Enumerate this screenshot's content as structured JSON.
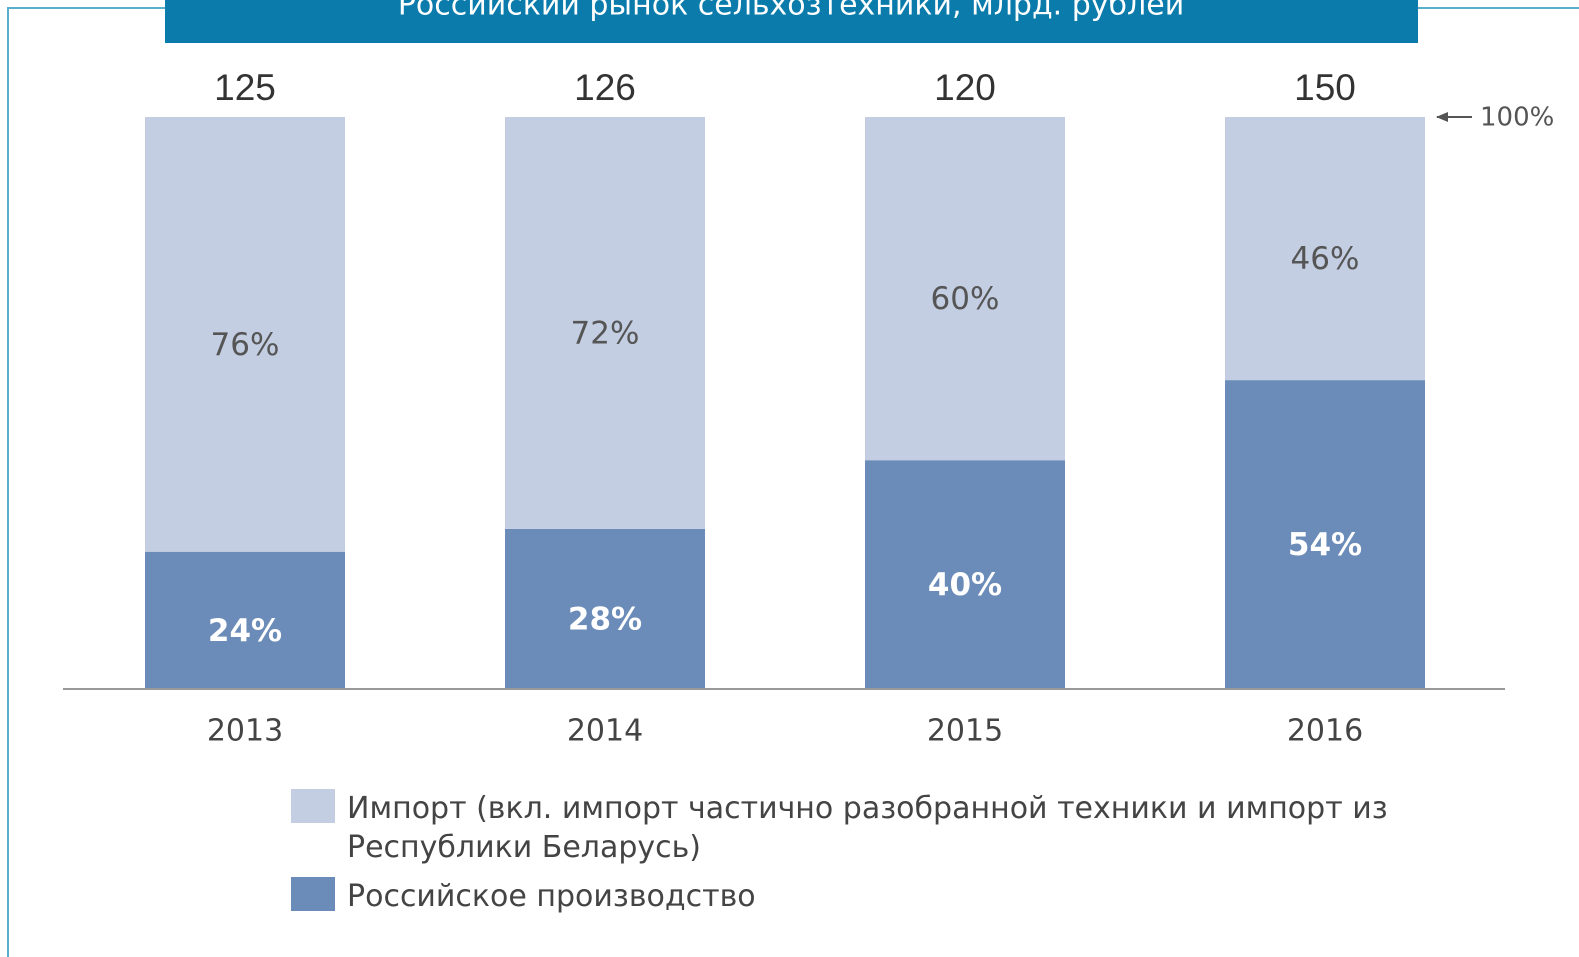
{
  "chart_data": {
    "type": "stacked_bar_100",
    "title": "Российский рынок сельхозтехники, млрд. рублей",
    "categories": [
      "2013",
      "2014",
      "2015",
      "2016"
    ],
    "totals": [
      125,
      126,
      120,
      150
    ],
    "annotation": "100%",
    "ylim": [
      0,
      100
    ],
    "series": [
      {
        "name": "Российское производство",
        "color": "#6b8cb8",
        "values": [
          24,
          28,
          40,
          54
        ],
        "value_labels": [
          "24%",
          "28%",
          "40%",
          "54%"
        ]
      },
      {
        "name": "Импорт (вкл. импорт частично разобранной техники и импорт из Республики Беларусь)",
        "color": "#c3cee2",
        "values": [
          76,
          72,
          60,
          46
        ],
        "value_labels": [
          "76%",
          "72%",
          "60%",
          "46%"
        ]
      }
    ]
  }
}
